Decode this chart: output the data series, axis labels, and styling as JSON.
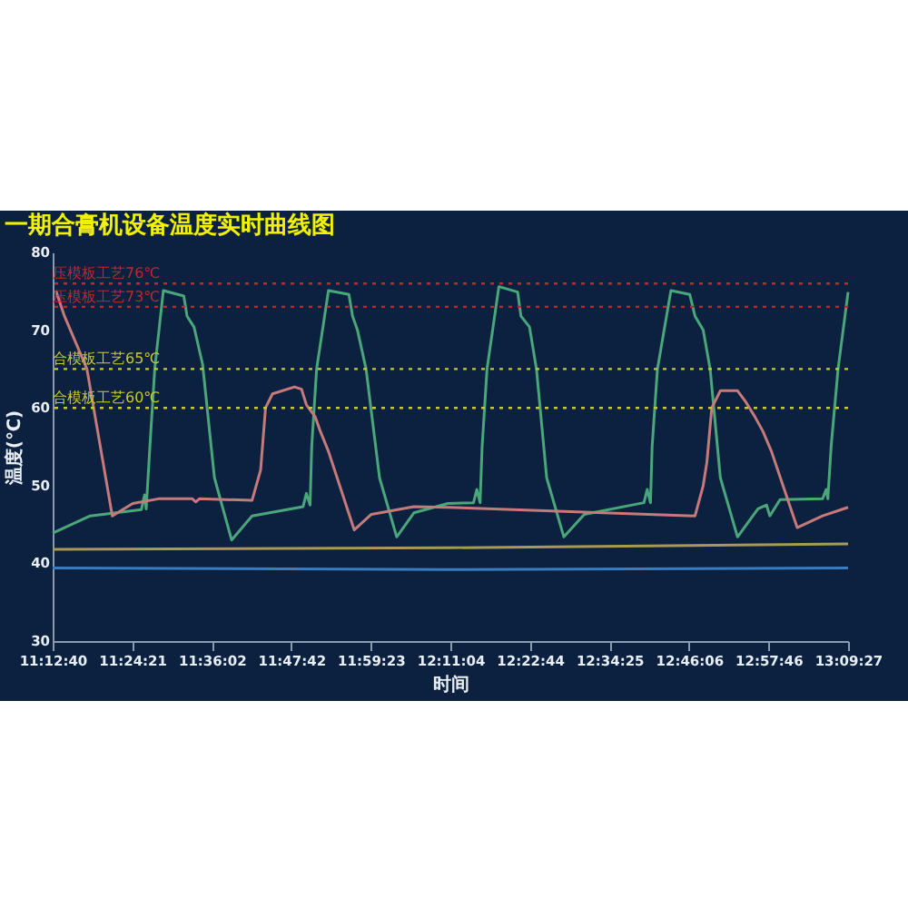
{
  "chart_data": {
    "type": "line",
    "title": "一期合膏机设备温度实时曲线图",
    "xlabel": "时间",
    "ylabel": "温度(℃)",
    "xlim": [
      11.21111,
      13.1575
    ],
    "xticks": [
      {
        "value": 11.21111,
        "label": "11:12:40"
      },
      {
        "value": 11.40583,
        "label": "11:24:21"
      },
      {
        "value": 11.60056,
        "label": "11:36:02"
      },
      {
        "value": 11.795,
        "label": "11:47:42"
      },
      {
        "value": 11.98972,
        "label": "11:59:23"
      },
      {
        "value": 12.18444,
        "label": "12:11:04"
      },
      {
        "value": 12.37889,
        "label": "12:22:44"
      },
      {
        "value": 12.57361,
        "label": "12:34:25"
      },
      {
        "value": 12.76833,
        "label": "12:46:06"
      },
      {
        "value": 12.96278,
        "label": "12:57:46"
      },
      {
        "value": 13.1575,
        "label": "13:09:27"
      }
    ],
    "ylim": [
      30,
      80
    ],
    "yticks": [
      30,
      40,
      50,
      60,
      70,
      80
    ],
    "marker": "none",
    "line_style": "solid",
    "series": [
      {
        "color": "#3a7cc0",
        "x": [
          11.21111,
          12.178,
          13.1575
        ],
        "values": [
          39.4,
          39.2,
          39.4
        ]
      },
      {
        "color": "#4aa77a",
        "x": [
          11.21111,
          11.303,
          11.428,
          11.436,
          11.44,
          11.449,
          11.461,
          11.482,
          11.532,
          11.54,
          11.557,
          11.578,
          11.607,
          11.649,
          11.699,
          11.824,
          11.832,
          11.841,
          11.845,
          11.857,
          11.886,
          11.936,
          11.945,
          11.957,
          11.978,
          12.011,
          12.053,
          12.095,
          12.178,
          12.241,
          12.249,
          12.257,
          12.262,
          12.274,
          12.303,
          12.349,
          12.357,
          12.378,
          12.395,
          12.42,
          12.462,
          12.512,
          12.658,
          12.666,
          12.674,
          12.678,
          12.691,
          12.724,
          12.77,
          12.783,
          12.803,
          12.82,
          12.845,
          12.887,
          12.937,
          12.958,
          12.966,
          12.991,
          13.095,
          13.104,
          13.108,
          13.116,
          13.133,
          13.1575
        ],
        "values": [
          43.9,
          46.1,
          46.9,
          48.8,
          47,
          55,
          65.1,
          75.1,
          74.4,
          71.8,
          70.4,
          65.6,
          51,
          43,
          46.1,
          47.3,
          49,
          47.5,
          55,
          65,
          75.1,
          74.6,
          71.8,
          70,
          65,
          51,
          43.4,
          46.5,
          47.7,
          47.8,
          49.5,
          47.8,
          55,
          65,
          75.6,
          74.9,
          71.8,
          70.4,
          65,
          51,
          43.4,
          46.3,
          47.8,
          49.5,
          47.8,
          55,
          65,
          75.1,
          74.6,
          71.8,
          70,
          65,
          51,
          43.4,
          47,
          47.5,
          46.1,
          48.2,
          48.3,
          49.5,
          48.3,
          55,
          65,
          74.9
        ]
      },
      {
        "color": "#a89a55",
        "x": [
          11.21111,
          12.178,
          13.1575
        ],
        "values": [
          41.8,
          42.0,
          42.5
        ]
      },
      {
        "color": "#c77a7a",
        "x": [
          11.219,
          11.24,
          11.295,
          11.357,
          11.407,
          11.47,
          11.553,
          11.561,
          11.57,
          11.699,
          11.72,
          11.732,
          11.749,
          11.803,
          11.82,
          11.832,
          11.853,
          11.866,
          11.886,
          11.949,
          11.991,
          12.095,
          12.178,
          12.783,
          12.803,
          12.812,
          12.824,
          12.845,
          12.887,
          12.908,
          12.929,
          12.949,
          12.97,
          13.033,
          13.095,
          13.1575
        ],
        "values": [
          75.1,
          71.8,
          65,
          46.1,
          47.7,
          48.3,
          48.3,
          47.9,
          48.3,
          48.1,
          52,
          60,
          61.8,
          62.7,
          62.4,
          60.4,
          58.9,
          57,
          54.4,
          44.3,
          46.3,
          47.3,
          47.2,
          46.1,
          50,
          53,
          60,
          62.2,
          62.2,
          60.7,
          58.9,
          57,
          54.4,
          44.6,
          46.1,
          47.2
        ]
      }
    ],
    "ref_lines": [
      {
        "axis": "y",
        "value": 76,
        "label": "压模板工艺76℃",
        "color": "#c0282e",
        "line_style": "dotted"
      },
      {
        "axis": "y",
        "value": 73,
        "label": "压模板工艺73℃",
        "color": "#c0282e",
        "line_style": "dotted"
      },
      {
        "axis": "y",
        "value": 65,
        "label": "合模板工艺65℃",
        "color": "#c8c832",
        "line_style": "dotted"
      },
      {
        "axis": "y",
        "value": 60,
        "label": "合模板工艺60℃",
        "color": "#c8c832",
        "line_style": "dotted"
      }
    ]
  }
}
